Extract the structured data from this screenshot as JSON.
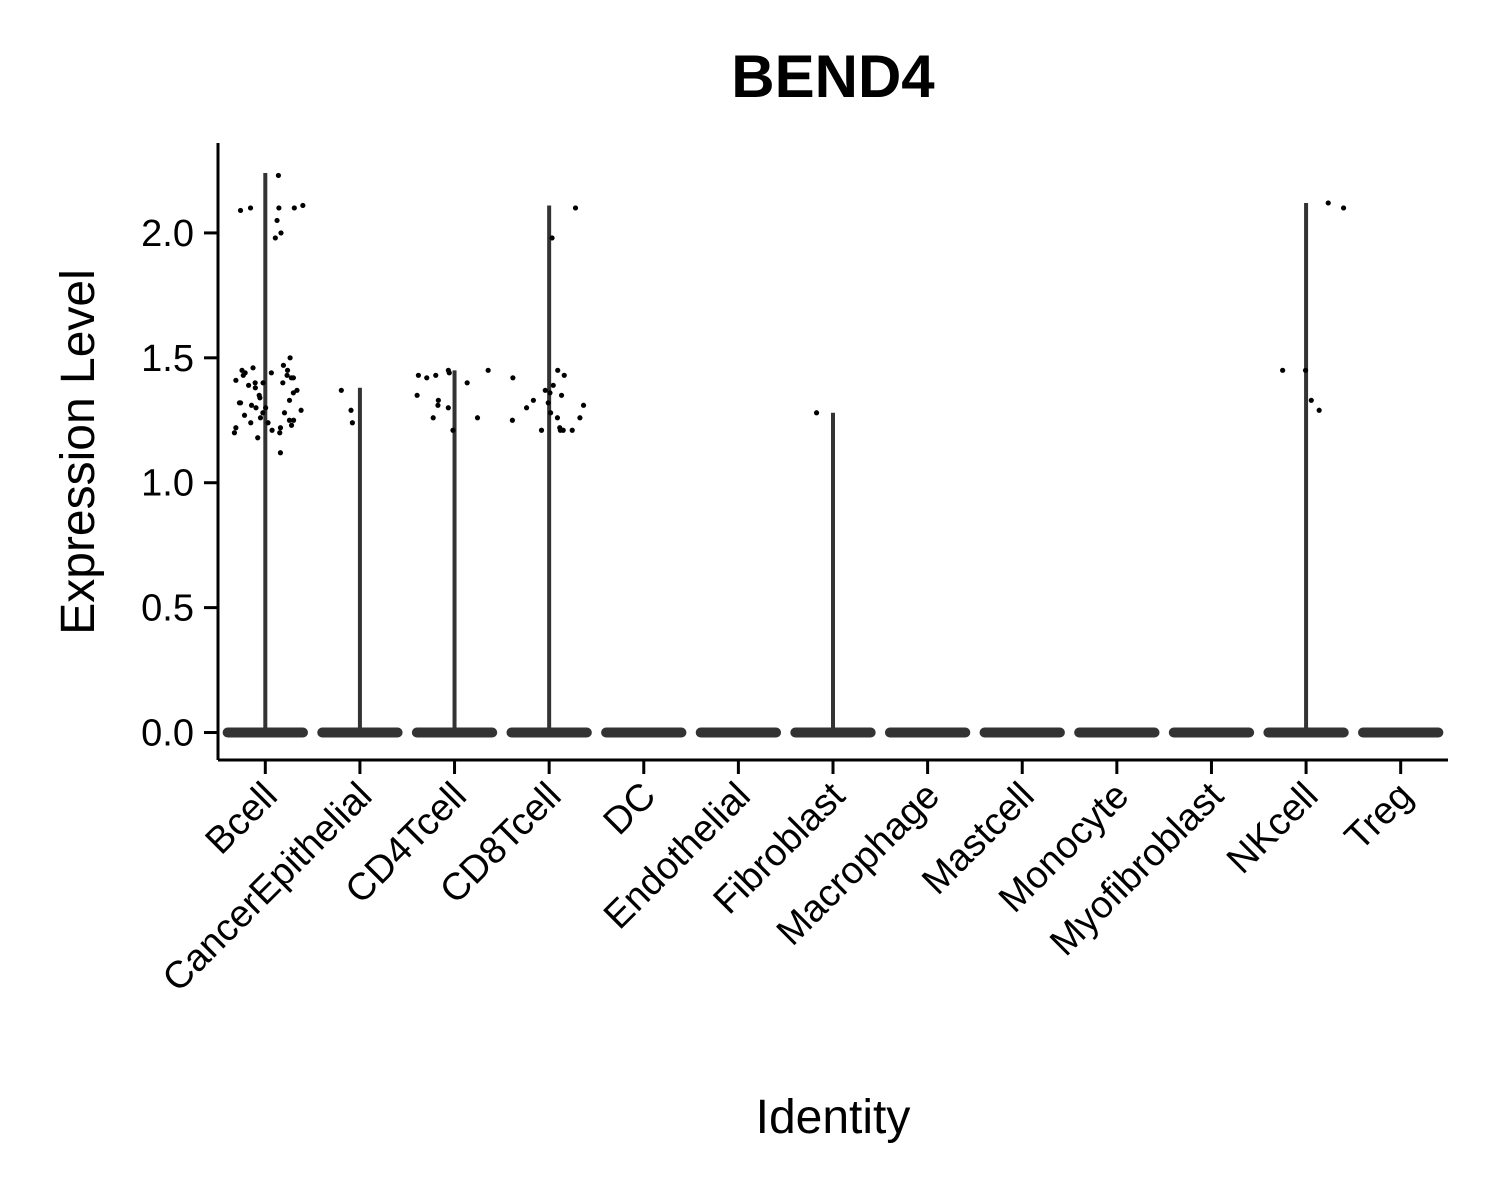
{
  "chart_data": {
    "type": "violin",
    "title": "BEND4",
    "xlabel": "Identity",
    "ylabel": "Expression Level",
    "ylim": [
      -0.11,
      2.36
    ],
    "yticks": [
      0.0,
      0.5,
      1.0,
      1.5,
      2.0
    ],
    "ytick_labels": [
      "0.0",
      "0.5",
      "1.0",
      "1.5",
      "2.0"
    ],
    "grid": false,
    "legend": "none",
    "categories": [
      "Bcell",
      "CancerEpithelial",
      "CD4Tcell",
      "CD8Tcell",
      "DC",
      "Endothelial",
      "Fibroblast",
      "Macrophage",
      "Mastcell",
      "Monocyte",
      "Myofibroblast",
      "NKcell",
      "Treg"
    ],
    "max_values": [
      2.24,
      1.38,
      1.45,
      2.11,
      0.0,
      0.0,
      1.28,
      0.0,
      0.0,
      0.0,
      0.0,
      2.12,
      0.0
    ],
    "points": [
      [
        2.05,
        2.1,
        1.98,
        2.11,
        2.1,
        2.23,
        2.09,
        2.1,
        2.0,
        1.5,
        1.47,
        1.46,
        1.45,
        1.45,
        1.44,
        1.44,
        1.43,
        1.43,
        1.42,
        1.42,
        1.41,
        1.4,
        1.4,
        1.4,
        1.39,
        1.38,
        1.37,
        1.36,
        1.35,
        1.34,
        1.33,
        1.32,
        1.32,
        1.31,
        1.3,
        1.3,
        1.29,
        1.28,
        1.28,
        1.27,
        1.26,
        1.25,
        1.25,
        1.24,
        1.24,
        1.23,
        1.22,
        1.22,
        1.21,
        1.2,
        1.2,
        1.18,
        1.12
      ],
      [
        1.37,
        1.29,
        1.24
      ],
      [
        1.45,
        1.45,
        1.44,
        1.43,
        1.43,
        1.42,
        1.4,
        1.35,
        1.33,
        1.31,
        1.3,
        1.26,
        1.26,
        1.21
      ],
      [
        1.98,
        2.1,
        1.45,
        1.43,
        1.42,
        1.39,
        1.37,
        1.36,
        1.35,
        1.33,
        1.32,
        1.31,
        1.3,
        1.28,
        1.26,
        1.26,
        1.25,
        1.22,
        1.21,
        1.21,
        1.21,
        1.21
      ],
      [],
      [],
      [
        1.28
      ],
      [],
      [],
      [],
      [],
      [
        2.12,
        2.1,
        1.45,
        1.45,
        1.33,
        1.29
      ],
      []
    ]
  }
}
